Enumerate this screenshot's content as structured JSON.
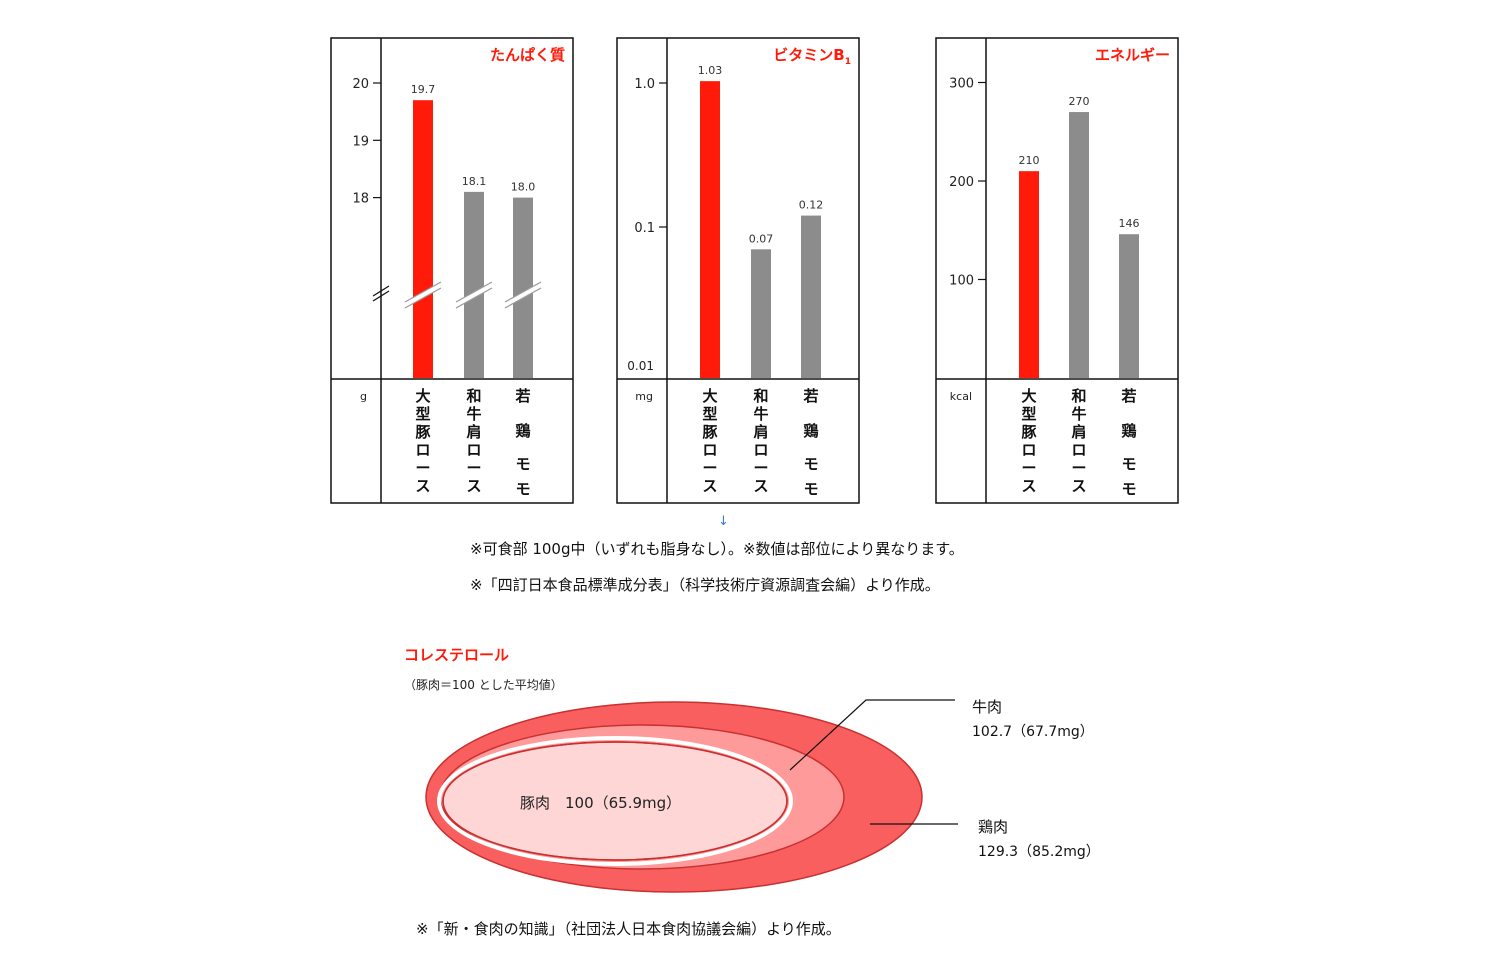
{
  "chart_data": [
    {
      "type": "bar",
      "title": "たんぱく質",
      "unit": "g",
      "categories": [
        "大型豚ロース",
        "和牛肩ロース",
        "若鶏モモ"
      ],
      "values": [
        19.7,
        18.1,
        18.0
      ],
      "value_labels": [
        "19.7",
        "18.1",
        "18.0"
      ],
      "yticks": [
        "20",
        "19",
        "18"
      ],
      "ylim": [
        17,
        20
      ],
      "axis_break": true,
      "colors": [
        "#ff1a0a",
        "#8c8c8c",
        "#8c8c8c"
      ]
    },
    {
      "type": "bar",
      "title": "ビタミンB",
      "title_sub": "1",
      "unit": "mg",
      "scale": "log",
      "categories": [
        "大型豚ロース",
        "和牛肩ロース",
        "若鶏モモ"
      ],
      "values": [
        1.03,
        0.07,
        0.12
      ],
      "value_labels": [
        "1.03",
        "0.07",
        "0.12"
      ],
      "yticks": [
        "1.0",
        "0.1",
        "0.01"
      ],
      "ylim": [
        0.01,
        1.0
      ],
      "colors": [
        "#ff1a0a",
        "#8c8c8c",
        "#8c8c8c"
      ]
    },
    {
      "type": "bar",
      "title": "エネルギー",
      "unit": "kcal",
      "categories": [
        "大型豚ロース",
        "和牛肩ロース",
        "若鶏モモ"
      ],
      "values": [
        210,
        270,
        146
      ],
      "value_labels": [
        "210",
        "270",
        "146"
      ],
      "yticks": [
        "300",
        "200",
        "100"
      ],
      "ylim": [
        0,
        300
      ],
      "colors": [
        "#ff1a0a",
        "#8c8c8c",
        "#8c8c8c"
      ]
    },
    {
      "type": "nested-ellipse",
      "title": "コレステロール",
      "subtitle": "（豚肉＝100 とした平均値）",
      "items": [
        {
          "name": "豚肉",
          "index": 100,
          "label": "豚肉　100（65.9mg）",
          "color": "#ffd6d6"
        },
        {
          "name": "牛肉",
          "index": 102.7,
          "label": "102.7（67.7mg）",
          "color": "#ff9a9a"
        },
        {
          "name": "鶏肉",
          "index": 129.3,
          "label": "129.3（85.2mg）",
          "color": "#f95f5f"
        }
      ]
    }
  ],
  "notes": {
    "arrow": "↓",
    "line1": "※可食部 100g中（いずれも脂身なし）。※数値は部位により異なります。",
    "line2": "※「四訂日本食品標準成分表」（科学技術庁資源調査会編）より作成。",
    "line3": "※「新・食肉の知識」（社団法人日本食肉協議会編）より作成。"
  }
}
